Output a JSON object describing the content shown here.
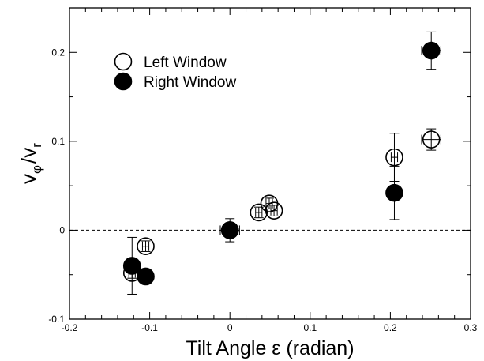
{
  "chart_data": {
    "type": "scatter",
    "xlabel": "Tilt Angle ε (radian)",
    "ylabel": {
      "main": "v",
      "sub_phi": "φ",
      "slash": "/v",
      "sub_r": "r"
    },
    "xlim": [
      -0.2,
      0.3
    ],
    "ylim": [
      -0.1,
      0.25
    ],
    "xticks": [
      -0.2,
      -0.1,
      0,
      0.1,
      0.2,
      0.3
    ],
    "xtick_labels": [
      "-0.2",
      "-0.1",
      "0",
      "0.1",
      "0.2",
      "0.3"
    ],
    "yticks": [
      -0.1,
      0,
      0.1,
      0.2
    ],
    "ytick_labels": [
      "-0.1",
      "0",
      "0.1",
      "0.2"
    ],
    "reference_line": {
      "y": 0,
      "style": "dashed"
    },
    "grid": false,
    "legend": {
      "position": "top-left"
    },
    "series": [
      {
        "name": "Left Window",
        "marker": "open-circle",
        "points": [
          {
            "x": -0.122,
            "y": -0.048,
            "xerr": 0.004,
            "yerr": 0.006
          },
          {
            "x": -0.105,
            "y": -0.018,
            "xerr": 0.004,
            "yerr": 0.006
          },
          {
            "x": 0.0,
            "y": 0.0,
            "xerr": 0.004,
            "yerr": 0.006
          },
          {
            "x": 0.036,
            "y": 0.02,
            "xerr": 0.004,
            "yerr": 0.006
          },
          {
            "x": 0.049,
            "y": 0.03,
            "xerr": 0.004,
            "yerr": 0.006
          },
          {
            "x": 0.055,
            "y": 0.022,
            "xerr": 0.004,
            "yerr": 0.006
          },
          {
            "x": 0.205,
            "y": 0.082,
            "xerr": 0.004,
            "yerr": 0.027
          },
          {
            "x": 0.251,
            "y": 0.102,
            "xerr": 0.012,
            "yerr": 0.012
          }
        ]
      },
      {
        "name": "Right Window",
        "marker": "filled-circle",
        "points": [
          {
            "x": -0.122,
            "y": -0.04,
            "xerr": 0.006,
            "yerr": 0.032
          },
          {
            "x": -0.105,
            "y": -0.052,
            "xerr": 0.004,
            "yerr": 0.006
          },
          {
            "x": 0.0,
            "y": 0.0,
            "xerr": 0.012,
            "yerr": 0.013
          },
          {
            "x": 0.205,
            "y": 0.042,
            "xerr": 0.004,
            "yerr": 0.03
          },
          {
            "x": 0.251,
            "y": 0.202,
            "xerr": 0.012,
            "yerr": 0.021
          }
        ]
      }
    ]
  }
}
